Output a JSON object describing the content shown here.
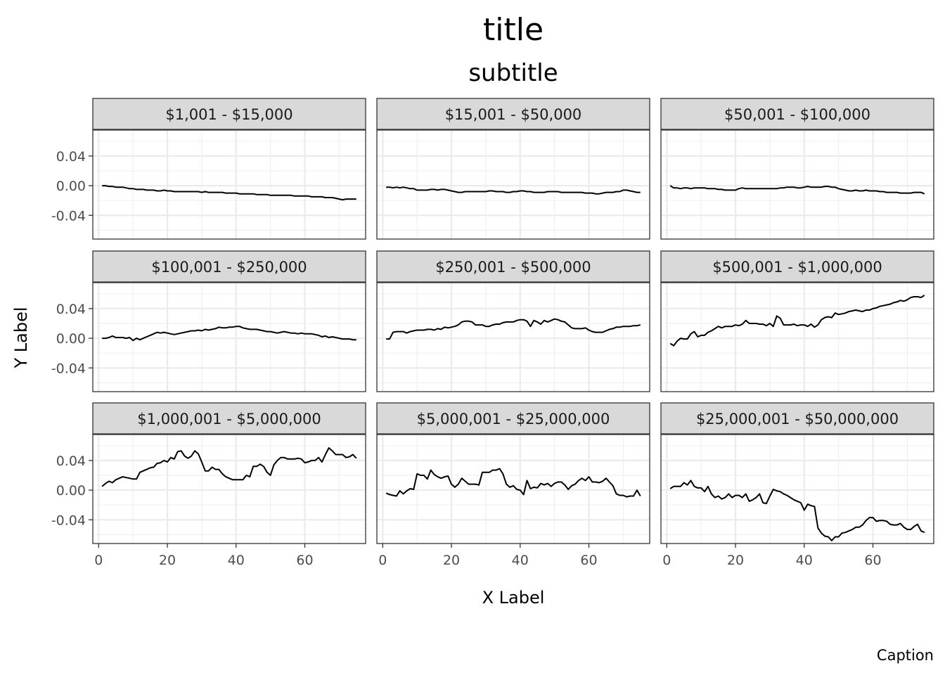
{
  "chart_data": {
    "type": "line",
    "facet_layout": "3x3 grid",
    "title": "title",
    "subtitle": "subtitle",
    "xlabel": "X Label",
    "ylabel": "Y Label",
    "caption": "Caption",
    "xlim": [
      -1.7,
      77.7
    ],
    "ylim": [
      -0.072,
      0.075
    ],
    "x_ticks": [
      0,
      20,
      40,
      60
    ],
    "y_ticks": [
      0.04,
      0.0,
      -0.04
    ],
    "y_tick_labels": [
      "0.04",
      "0.00",
      "-0.04"
    ],
    "grid": true,
    "facets": [
      {
        "label": "$1,001 - $15,000",
        "x_start": 1,
        "x_step": 1,
        "values": [
          0.0,
          0.0,
          -0.001,
          -0.001,
          -0.002,
          -0.002,
          -0.002,
          -0.003,
          -0.004,
          -0.004,
          -0.005,
          -0.005,
          -0.005,
          -0.006,
          -0.006,
          -0.006,
          -0.007,
          -0.007,
          -0.006,
          -0.007,
          -0.007,
          -0.008,
          -0.008,
          -0.008,
          -0.008,
          -0.008,
          -0.008,
          -0.008,
          -0.008,
          -0.009,
          -0.008,
          -0.009,
          -0.009,
          -0.009,
          -0.009,
          -0.009,
          -0.01,
          -0.01,
          -0.01,
          -0.01,
          -0.011,
          -0.011,
          -0.011,
          -0.011,
          -0.011,
          -0.012,
          -0.012,
          -0.012,
          -0.012,
          -0.013,
          -0.013,
          -0.013,
          -0.013,
          -0.013,
          -0.013,
          -0.013,
          -0.014,
          -0.014,
          -0.014,
          -0.014,
          -0.014,
          -0.015,
          -0.015,
          -0.015,
          -0.015,
          -0.016,
          -0.016,
          -0.016,
          -0.017,
          -0.018,
          -0.019,
          -0.018,
          -0.018,
          -0.018,
          -0.018
        ]
      },
      {
        "label": "$15,001 - $50,000",
        "x_start": 1,
        "x_step": 1,
        "values": [
          -0.002,
          -0.002,
          -0.003,
          -0.002,
          -0.003,
          -0.002,
          -0.003,
          -0.004,
          -0.004,
          -0.006,
          -0.006,
          -0.006,
          -0.006,
          -0.005,
          -0.005,
          -0.006,
          -0.005,
          -0.005,
          -0.006,
          -0.007,
          -0.008,
          -0.009,
          -0.009,
          -0.008,
          -0.008,
          -0.008,
          -0.008,
          -0.008,
          -0.008,
          -0.008,
          -0.007,
          -0.007,
          -0.008,
          -0.008,
          -0.008,
          -0.009,
          -0.009,
          -0.008,
          -0.008,
          -0.007,
          -0.007,
          -0.008,
          -0.008,
          -0.009,
          -0.009,
          -0.009,
          -0.009,
          -0.008,
          -0.008,
          -0.008,
          -0.008,
          -0.009,
          -0.009,
          -0.009,
          -0.009,
          -0.009,
          -0.009,
          -0.009,
          -0.01,
          -0.01,
          -0.01,
          -0.011,
          -0.011,
          -0.01,
          -0.009,
          -0.009,
          -0.009,
          -0.008,
          -0.008,
          -0.006,
          -0.006,
          -0.007,
          -0.008,
          -0.009,
          -0.009
        ]
      },
      {
        "label": "$50,001 - $100,000",
        "x_start": 1,
        "x_step": 1,
        "values": [
          0.0,
          -0.003,
          -0.003,
          -0.004,
          -0.003,
          -0.003,
          -0.004,
          -0.003,
          -0.003,
          -0.003,
          -0.003,
          -0.004,
          -0.004,
          -0.004,
          -0.005,
          -0.005,
          -0.006,
          -0.006,
          -0.006,
          -0.006,
          -0.004,
          -0.003,
          -0.004,
          -0.004,
          -0.004,
          -0.004,
          -0.004,
          -0.004,
          -0.004,
          -0.004,
          -0.004,
          -0.004,
          -0.003,
          -0.003,
          -0.002,
          -0.002,
          -0.002,
          -0.003,
          -0.003,
          -0.002,
          -0.001,
          -0.002,
          -0.002,
          -0.002,
          -0.002,
          -0.001,
          -0.001,
          -0.002,
          -0.002,
          -0.004,
          -0.005,
          -0.006,
          -0.007,
          -0.007,
          -0.006,
          -0.007,
          -0.007,
          -0.006,
          -0.007,
          -0.007,
          -0.007,
          -0.008,
          -0.008,
          -0.009,
          -0.009,
          -0.009,
          -0.009,
          -0.01,
          -0.01,
          -0.01,
          -0.01,
          -0.009,
          -0.009,
          -0.009,
          -0.011
        ]
      },
      {
        "label": "$100,001 - $250,000",
        "x_start": 1,
        "x_step": 1,
        "values": [
          0.0,
          0.0,
          0.001,
          0.003,
          0.001,
          0.001,
          0.001,
          0.0,
          0.001,
          -0.003,
          0.0,
          -0.002,
          0.0,
          0.002,
          0.004,
          0.006,
          0.008,
          0.007,
          0.008,
          0.007,
          0.006,
          0.005,
          0.006,
          0.007,
          0.008,
          0.009,
          0.01,
          0.01,
          0.011,
          0.01,
          0.012,
          0.011,
          0.012,
          0.013,
          0.015,
          0.014,
          0.014,
          0.015,
          0.015,
          0.016,
          0.016,
          0.014,
          0.013,
          0.012,
          0.012,
          0.012,
          0.011,
          0.01,
          0.009,
          0.009,
          0.008,
          0.007,
          0.008,
          0.009,
          0.008,
          0.007,
          0.007,
          0.006,
          0.007,
          0.006,
          0.006,
          0.006,
          0.005,
          0.004,
          0.002,
          0.003,
          0.001,
          0.002,
          0.001,
          0.0,
          -0.001,
          -0.001,
          -0.001,
          -0.002,
          -0.002
        ]
      },
      {
        "label": "$250,001 - $500,000",
        "x_start": 1,
        "x_step": 1,
        "values": [
          -0.001,
          -0.001,
          0.008,
          0.009,
          0.009,
          0.009,
          0.007,
          0.009,
          0.01,
          0.011,
          0.011,
          0.011,
          0.012,
          0.012,
          0.011,
          0.013,
          0.012,
          0.015,
          0.014,
          0.015,
          0.016,
          0.018,
          0.022,
          0.023,
          0.023,
          0.022,
          0.018,
          0.018,
          0.018,
          0.016,
          0.016,
          0.018,
          0.019,
          0.019,
          0.021,
          0.022,
          0.022,
          0.022,
          0.024,
          0.025,
          0.025,
          0.023,
          0.016,
          0.024,
          0.022,
          0.019,
          0.024,
          0.022,
          0.024,
          0.026,
          0.025,
          0.023,
          0.022,
          0.018,
          0.014,
          0.013,
          0.013,
          0.013,
          0.014,
          0.011,
          0.009,
          0.008,
          0.008,
          0.008,
          0.01,
          0.012,
          0.013,
          0.015,
          0.015,
          0.016,
          0.016,
          0.016,
          0.017,
          0.017,
          0.018
        ]
      },
      {
        "label": "$500,001 - $1,000,000",
        "x_start": 1,
        "x_step": 1,
        "values": [
          -0.007,
          -0.01,
          -0.004,
          0.0,
          -0.001,
          -0.001,
          0.006,
          0.009,
          0.002,
          0.004,
          0.004,
          0.008,
          0.01,
          0.013,
          0.016,
          0.014,
          0.016,
          0.016,
          0.016,
          0.018,
          0.017,
          0.019,
          0.024,
          0.02,
          0.02,
          0.02,
          0.019,
          0.019,
          0.017,
          0.02,
          0.016,
          0.03,
          0.027,
          0.018,
          0.018,
          0.018,
          0.019,
          0.017,
          0.018,
          0.018,
          0.016,
          0.019,
          0.015,
          0.018,
          0.025,
          0.028,
          0.029,
          0.028,
          0.034,
          0.032,
          0.033,
          0.034,
          0.036,
          0.037,
          0.038,
          0.037,
          0.036,
          0.038,
          0.038,
          0.04,
          0.041,
          0.043,
          0.044,
          0.045,
          0.046,
          0.048,
          0.049,
          0.051,
          0.05,
          0.052,
          0.055,
          0.056,
          0.056,
          0.055,
          0.058
        ]
      },
      {
        "label": "$1,000,001 - $5,000,000",
        "x_start": 1,
        "x_step": 1,
        "values": [
          0.005,
          0.009,
          0.012,
          0.01,
          0.014,
          0.016,
          0.018,
          0.017,
          0.016,
          0.015,
          0.015,
          0.024,
          0.026,
          0.028,
          0.03,
          0.031,
          0.036,
          0.037,
          0.04,
          0.038,
          0.044,
          0.042,
          0.052,
          0.053,
          0.046,
          0.043,
          0.046,
          0.053,
          0.049,
          0.038,
          0.026,
          0.026,
          0.031,
          0.028,
          0.028,
          0.022,
          0.018,
          0.016,
          0.014,
          0.014,
          0.014,
          0.014,
          0.02,
          0.018,
          0.032,
          0.032,
          0.035,
          0.032,
          0.024,
          0.02,
          0.034,
          0.04,
          0.044,
          0.044,
          0.042,
          0.042,
          0.042,
          0.043,
          0.042,
          0.037,
          0.038,
          0.04,
          0.04,
          0.044,
          0.038,
          0.048,
          0.057,
          0.053,
          0.048,
          0.048,
          0.048,
          0.044,
          0.045,
          0.048,
          0.043
        ]
      },
      {
        "label": "$5,000,001 - $25,000,000",
        "x_start": 1,
        "x_step": 1,
        "values": [
          -0.004,
          -0.006,
          -0.007,
          -0.008,
          -0.001,
          -0.005,
          -0.001,
          0.002,
          0.001,
          0.022,
          0.02,
          0.02,
          0.015,
          0.027,
          0.021,
          0.018,
          0.016,
          0.018,
          0.019,
          0.008,
          0.004,
          0.008,
          0.016,
          0.012,
          0.008,
          0.008,
          0.008,
          0.007,
          0.024,
          0.024,
          0.024,
          0.027,
          0.027,
          0.029,
          0.022,
          0.008,
          0.004,
          0.006,
          0.001,
          0.0,
          -0.006,
          0.013,
          0.002,
          0.004,
          0.003,
          0.009,
          0.007,
          0.009,
          0.005,
          0.009,
          0.011,
          0.011,
          0.007,
          0.001,
          0.006,
          0.008,
          0.013,
          0.016,
          0.013,
          0.018,
          0.011,
          0.011,
          0.01,
          0.012,
          0.016,
          0.011,
          0.006,
          -0.005,
          -0.007,
          -0.007,
          -0.009,
          -0.008,
          -0.008,
          0.0,
          -0.008
        ]
      },
      {
        "label": "$25,000,001 - $50,000,000",
        "x_start": 1,
        "x_step": 1,
        "values": [
          0.002,
          0.005,
          0.005,
          0.005,
          0.01,
          0.007,
          0.013,
          0.005,
          0.003,
          0.003,
          -0.002,
          0.005,
          -0.005,
          -0.01,
          -0.008,
          -0.012,
          -0.01,
          -0.005,
          -0.01,
          -0.007,
          -0.007,
          -0.01,
          -0.005,
          -0.015,
          -0.013,
          -0.01,
          -0.005,
          -0.017,
          -0.018,
          -0.008,
          0.001,
          -0.001,
          -0.002,
          -0.005,
          -0.007,
          -0.01,
          -0.013,
          -0.015,
          -0.017,
          -0.027,
          -0.019,
          -0.021,
          -0.022,
          -0.051,
          -0.058,
          -0.062,
          -0.063,
          -0.068,
          -0.063,
          -0.063,
          -0.058,
          -0.057,
          -0.055,
          -0.053,
          -0.05,
          -0.05,
          -0.047,
          -0.041,
          -0.037,
          -0.037,
          -0.042,
          -0.041,
          -0.041,
          -0.042,
          -0.046,
          -0.047,
          -0.047,
          -0.045,
          -0.05,
          -0.053,
          -0.053,
          -0.049,
          -0.046,
          -0.055,
          -0.057
        ]
      }
    ]
  }
}
